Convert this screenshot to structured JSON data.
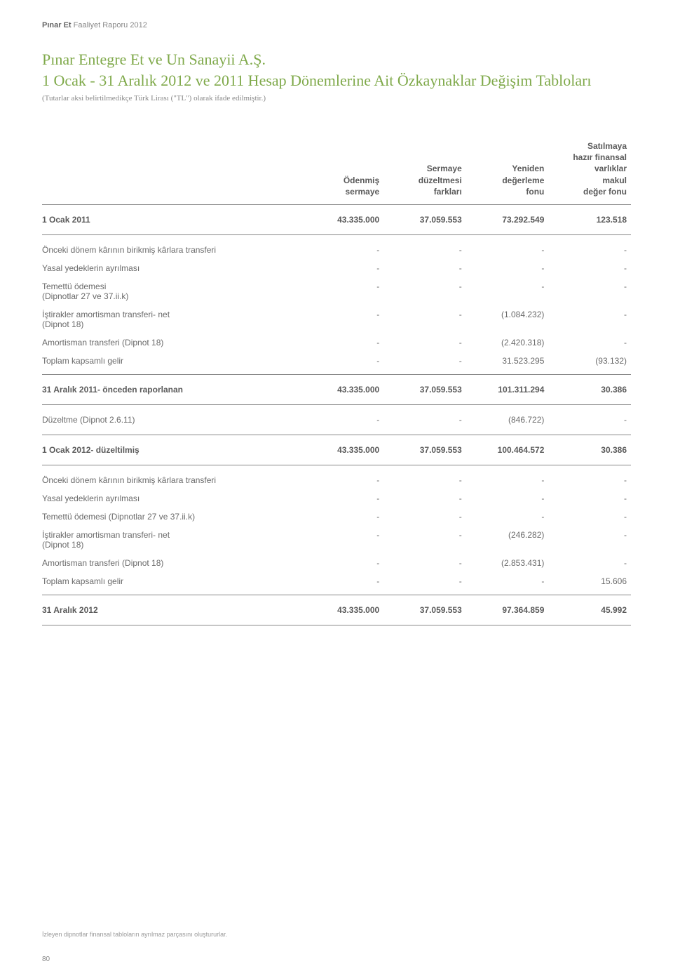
{
  "header": {
    "brand": "Pınar Et",
    "rest": " Faaliyet Raporu 2012"
  },
  "title": "Pınar Entegre Et ve Un Sanayii A.Ş.",
  "subtitle": "1 Ocak - 31 Aralık 2012 ve 2011 Hesap Dönemlerine Ait Özkaynaklar Değişim Tabloları",
  "note": "(Tutarlar aksi belirtilmedikçe Türk Lirası (\"TL\") olarak ifade edilmiştir.)",
  "columns": {
    "c1": "Ödenmiş\nsermaye",
    "c2": "Sermaye\ndüzeltmesi\nfarkları",
    "c3": "Yeniden\ndeğerleme\nfonu",
    "c4": "Satılmaya\nhazır finansal\nvarlıklar\nmakul\ndeğer fonu"
  },
  "rows": [
    {
      "type": "bold section-top section-bottom extra-top extra-bottom",
      "label": "1 Ocak 2011",
      "v": [
        "43.335.000",
        "37.059.553",
        "73.292.549",
        "123.518"
      ]
    },
    {
      "type": "plain extra-top",
      "label": "Önceki dönem kârının birikmiş kârlara transferi",
      "v": [
        "-",
        "-",
        "-",
        "-"
      ]
    },
    {
      "type": "plain",
      "label": "Yasal yedeklerin ayrılması",
      "v": [
        "-",
        "-",
        "-",
        "-"
      ]
    },
    {
      "type": "plain",
      "label": "Temettü ödemesi",
      "sub": "(Dipnotlar 27 ve 37.ii.k)",
      "v": [
        "-",
        "-",
        "-",
        "-"
      ]
    },
    {
      "type": "plain",
      "label": "İştirakler amortisman transferi- net",
      "sub": "(Dipnot 18)",
      "v": [
        "-",
        "-",
        "(1.084.232)",
        "-"
      ]
    },
    {
      "type": "plain",
      "label": "Amortisman transferi (Dipnot 18)",
      "v": [
        "-",
        "-",
        "(2.420.318)",
        "-"
      ]
    },
    {
      "type": "plain section-bottom",
      "label": "Toplam kapsamlı gelir",
      "v": [
        "-",
        "-",
        "31.523.295",
        "(93.132)"
      ]
    },
    {
      "type": "bold section-bottom extra-top extra-bottom",
      "label": "31 Aralık 2011- önceden raporlanan",
      "v": [
        "43.335.000",
        "37.059.553",
        "101.311.294",
        "30.386"
      ]
    },
    {
      "type": "plain section-bottom extra-top extra-bottom",
      "label": "Düzeltme (Dipnot 2.6.11)",
      "v": [
        "-",
        "-",
        "(846.722)",
        "-"
      ]
    },
    {
      "type": "bold section-bottom extra-top extra-bottom",
      "label": "1 Ocak 2012- düzeltilmiş",
      "v": [
        "43.335.000",
        "37.059.553",
        "100.464.572",
        "30.386"
      ]
    },
    {
      "type": "plain extra-top",
      "label": "Önceki dönem kârının birikmiş kârlara transferi",
      "v": [
        "-",
        "-",
        "-",
        "-"
      ]
    },
    {
      "type": "plain",
      "label": "Yasal yedeklerin ayrılması",
      "v": [
        "-",
        "-",
        "-",
        "-"
      ]
    },
    {
      "type": "plain",
      "label": "Temettü ödemesi (Dipnotlar 27 ve 37.ii.k)",
      "v": [
        "-",
        "-",
        "-",
        "-"
      ]
    },
    {
      "type": "plain",
      "label": "İştirakler amortisman transferi- net",
      "sub": "(Dipnot 18)",
      "v": [
        "-",
        "-",
        "(246.282)",
        "-"
      ]
    },
    {
      "type": "plain",
      "label": "Amortisman transferi (Dipnot 18)",
      "v": [
        "-",
        "-",
        "(2.853.431)",
        "-"
      ]
    },
    {
      "type": "plain section-bottom",
      "label": "Toplam kapsamlı gelir",
      "v": [
        "-",
        "-",
        "-",
        "15.606"
      ]
    },
    {
      "type": "bold section-bottom extra-top extra-bottom",
      "label": "31 Aralık 2012",
      "v": [
        "43.335.000",
        "37.059.553",
        "97.364.859",
        "45.992"
      ]
    }
  ],
  "footnote": "İzleyen dipnotlar finansal tabloların ayrılmaz parçasını oluştururlar.",
  "pagenum": "80"
}
